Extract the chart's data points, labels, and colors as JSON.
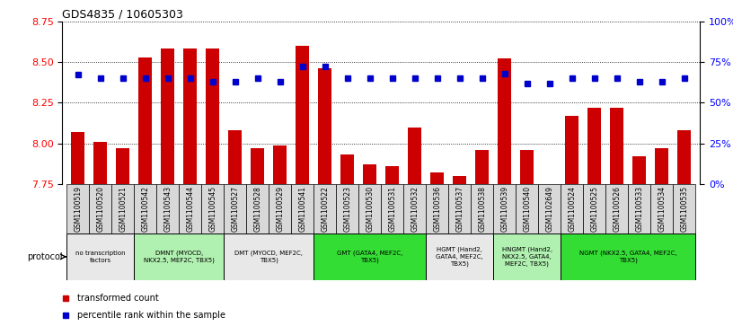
{
  "title": "GDS4835 / 10605303",
  "samples": [
    "GSM1100519",
    "GSM1100520",
    "GSM1100521",
    "GSM1100542",
    "GSM1100543",
    "GSM1100544",
    "GSM1100545",
    "GSM1100527",
    "GSM1100528",
    "GSM1100529",
    "GSM1100541",
    "GSM1100522",
    "GSM1100523",
    "GSM1100530",
    "GSM1100531",
    "GSM1100532",
    "GSM1100536",
    "GSM1100537",
    "GSM1100538",
    "GSM1100539",
    "GSM1100540",
    "GSM1102649",
    "GSM1100524",
    "GSM1100525",
    "GSM1100526",
    "GSM1100533",
    "GSM1100534",
    "GSM1100535"
  ],
  "transformed_count": [
    8.07,
    8.01,
    7.97,
    8.53,
    8.58,
    8.58,
    8.58,
    8.08,
    7.97,
    7.99,
    8.6,
    8.46,
    7.93,
    7.87,
    7.86,
    8.1,
    7.82,
    7.8,
    7.96,
    8.52,
    7.96,
    7.75,
    8.17,
    8.22,
    8.22,
    7.92,
    7.97,
    8.08
  ],
  "percentile_rank": [
    67,
    65,
    65,
    65,
    65,
    65,
    63,
    63,
    65,
    63,
    72,
    72,
    65,
    65,
    65,
    65,
    65,
    65,
    65,
    68,
    62,
    62,
    65,
    65,
    65,
    63,
    63,
    65
  ],
  "protocols": [
    {
      "label": "no transcription\nfactors",
      "color": "#e8e8e8",
      "start": 0,
      "end": 3
    },
    {
      "label": "DMNT (MYOCD,\nNKX2.5, MEF2C, TBX5)",
      "color": "#b0f0b0",
      "start": 3,
      "end": 7
    },
    {
      "label": "DMT (MYOCD, MEF2C,\nTBX5)",
      "color": "#e8e8e8",
      "start": 7,
      "end": 11
    },
    {
      "label": "GMT (GATA4, MEF2C,\nTBX5)",
      "color": "#33dd33",
      "start": 11,
      "end": 16
    },
    {
      "label": "HGMT (Hand2,\nGATA4, MEF2C,\nTBX5)",
      "color": "#e8e8e8",
      "start": 16,
      "end": 19
    },
    {
      "label": "HNGMT (Hand2,\nNKX2.5, GATA4,\nMEF2C, TBX5)",
      "color": "#b0f0b0",
      "start": 19,
      "end": 22
    },
    {
      "label": "NGMT (NKX2.5, GATA4, MEF2C,\nTBX5)",
      "color": "#33dd33",
      "start": 22,
      "end": 28
    }
  ],
  "ylim_left": [
    7.75,
    8.75
  ],
  "ylim_right": [
    0,
    100
  ],
  "yticks_left": [
    7.75,
    8.0,
    8.25,
    8.5,
    8.75
  ],
  "yticks_right": [
    0,
    25,
    50,
    75,
    100
  ],
  "bar_color": "#cc0000",
  "dot_color": "#0000cc",
  "bar_width": 0.6,
  "bg_color": "#ffffff"
}
